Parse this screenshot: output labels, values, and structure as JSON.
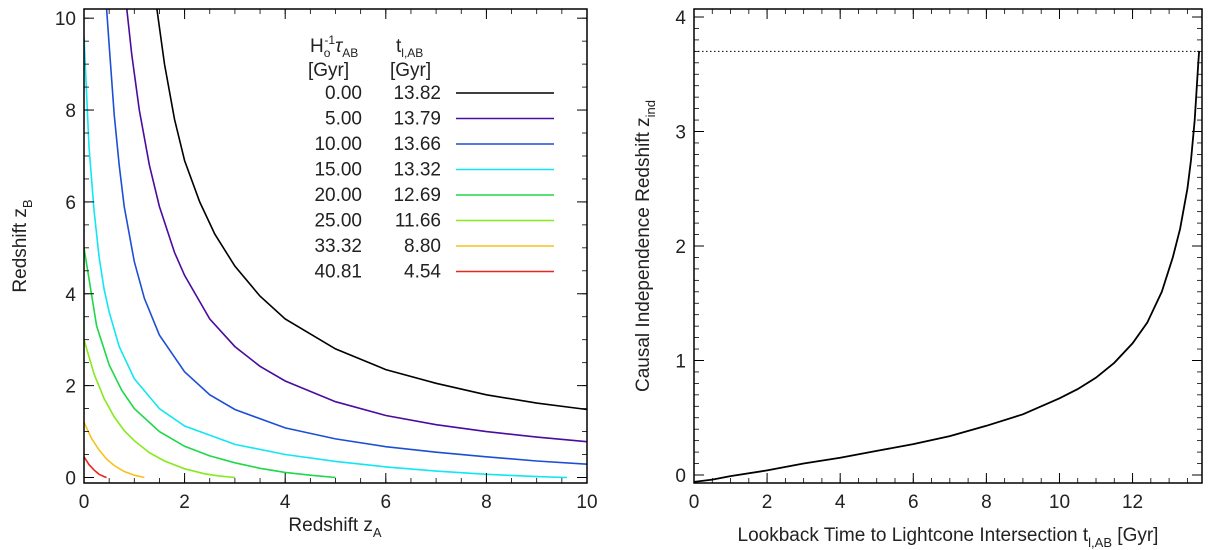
{
  "chart_data": [
    {
      "type": "line",
      "xlabel": "Redshift z",
      "xlabel_sub": "A",
      "ylabel": "Redshift z",
      "ylabel_sub": "B",
      "xlim": [
        0,
        10
      ],
      "ylim": [
        -0.12,
        10.2
      ],
      "xticks": [
        0,
        2,
        4,
        6,
        8,
        10
      ],
      "yticks": [
        0,
        2,
        4,
        6,
        8,
        10
      ],
      "legend": {
        "placement": "top-right",
        "col1_header": {
          "main": "H",
          "sub": "o",
          "sup": "-1",
          "tau": "τ",
          "tau_sub": "AB",
          "line2": "[Gyr]"
        },
        "col2_header": {
          "main": "t",
          "sub": "l,AB",
          "line2": "[Gyr]"
        }
      },
      "series": [
        {
          "tau": "0.00",
          "t": "13.82",
          "color": "#000000",
          "x": [
            1.45,
            1.6,
            1.8,
            2.0,
            2.3,
            2.6,
            3.0,
            3.5,
            4.0,
            5.0,
            6.0,
            7.0,
            8.0,
            9.0,
            10.0
          ],
          "y": [
            10.2,
            9.0,
            7.8,
            6.9,
            6.0,
            5.3,
            4.6,
            3.95,
            3.45,
            2.8,
            2.35,
            2.05,
            1.8,
            1.62,
            1.48
          ]
        },
        {
          "tau": "5.00",
          "t": "13.79",
          "color": "#4a0b9e",
          "x": [
            0.85,
            0.95,
            1.1,
            1.3,
            1.5,
            1.8,
            2.0,
            2.5,
            3.0,
            3.5,
            4.0,
            5.0,
            6.0,
            7.0,
            8.0,
            9.0,
            10.0
          ],
          "y": [
            10.2,
            9.2,
            8.0,
            6.8,
            5.9,
            4.9,
            4.4,
            3.45,
            2.85,
            2.42,
            2.1,
            1.65,
            1.35,
            1.15,
            1.0,
            0.88,
            0.78
          ]
        },
        {
          "tau": "10.00",
          "t": "13.66",
          "color": "#1c4fd6",
          "x": [
            0.45,
            0.5,
            0.6,
            0.7,
            0.8,
            1.0,
            1.2,
            1.5,
            2.0,
            2.5,
            3.0,
            4.0,
            5.0,
            6.0,
            7.0,
            8.0,
            9.0,
            10.0
          ],
          "y": [
            10.2,
            9.4,
            7.9,
            6.8,
            5.9,
            4.7,
            3.9,
            3.1,
            2.3,
            1.8,
            1.48,
            1.08,
            0.84,
            0.67,
            0.55,
            0.45,
            0.36,
            0.29
          ]
        },
        {
          "tau": "15.00",
          "t": "13.32",
          "color": "#12e6f2",
          "x": [
            0.0,
            0.1,
            0.2,
            0.3,
            0.4,
            0.5,
            0.7,
            1.0,
            1.5,
            2.0,
            3.0,
            4.0,
            5.0,
            6.0,
            7.0,
            8.0,
            9.0,
            9.6
          ],
          "y": [
            9.6,
            7.2,
            5.8,
            4.8,
            4.1,
            3.6,
            2.85,
            2.15,
            1.5,
            1.12,
            0.72,
            0.5,
            0.35,
            0.23,
            0.14,
            0.07,
            0.02,
            0.0
          ]
        },
        {
          "tau": "20.00",
          "t": "12.69",
          "color": "#1ed84a",
          "x": [
            0.0,
            0.25,
            0.5,
            0.75,
            1.0,
            1.5,
            2.0,
            2.5,
            3.0,
            3.5,
            4.0,
            4.5,
            5.0
          ],
          "y": [
            5.0,
            3.3,
            2.45,
            1.9,
            1.5,
            1.0,
            0.68,
            0.47,
            0.32,
            0.2,
            0.11,
            0.05,
            0.0
          ]
        },
        {
          "tau": "25.00",
          "t": "11.66",
          "color": "#86ea1c",
          "x": [
            0.0,
            0.2,
            0.4,
            0.6,
            0.8,
            1.0,
            1.3,
            1.6,
            2.0,
            2.4,
            2.7,
            3.0
          ],
          "y": [
            3.0,
            2.25,
            1.72,
            1.32,
            1.02,
            0.8,
            0.54,
            0.36,
            0.19,
            0.08,
            0.03,
            0.0
          ]
        },
        {
          "tau": "33.32",
          "t": "8.80",
          "color": "#f6c21a",
          "x": [
            0.0,
            0.15,
            0.3,
            0.45,
            0.6,
            0.8,
            1.0,
            1.2
          ],
          "y": [
            1.2,
            0.85,
            0.6,
            0.4,
            0.26,
            0.13,
            0.05,
            0.0
          ]
        },
        {
          "tau": "40.81",
          "t": "4.54",
          "color": "#e8271f",
          "x": [
            0.0,
            0.1,
            0.2,
            0.3,
            0.4,
            0.45
          ],
          "y": [
            0.45,
            0.28,
            0.16,
            0.07,
            0.02,
            0.0
          ]
        }
      ]
    },
    {
      "type": "line",
      "xlabel": "Lookback Time to Lightcone Intersection t",
      "xlabel_sub": "l,AB",
      "xlabel_unit": " [Gyr]",
      "ylabel": "Causal Independence Redshift z",
      "ylabel_sub": "ind",
      "xlim": [
        0,
        13.9
      ],
      "ylim": [
        -0.07,
        4.07
      ],
      "xticks": [
        0,
        2,
        4,
        6,
        8,
        10,
        12
      ],
      "yticks": [
        0,
        1,
        2,
        3,
        4
      ],
      "hline": {
        "y": 3.7,
        "style": "dotted"
      },
      "series": [
        {
          "color": "#000000",
          "x": [
            0.0,
            0.5,
            1.0,
            2.0,
            3.0,
            4.0,
            5.0,
            6.0,
            7.0,
            8.0,
            9.0,
            10.0,
            10.5,
            11.0,
            11.5,
            12.0,
            12.4,
            12.8,
            13.1,
            13.3,
            13.5,
            13.6,
            13.7,
            13.75,
            13.8,
            13.82
          ],
          "y": [
            -0.06,
            -0.04,
            -0.01,
            0.04,
            0.1,
            0.15,
            0.21,
            0.27,
            0.34,
            0.43,
            0.53,
            0.67,
            0.75,
            0.85,
            0.98,
            1.15,
            1.33,
            1.6,
            1.9,
            2.15,
            2.5,
            2.75,
            3.1,
            3.35,
            3.6,
            3.7
          ]
        }
      ]
    }
  ]
}
